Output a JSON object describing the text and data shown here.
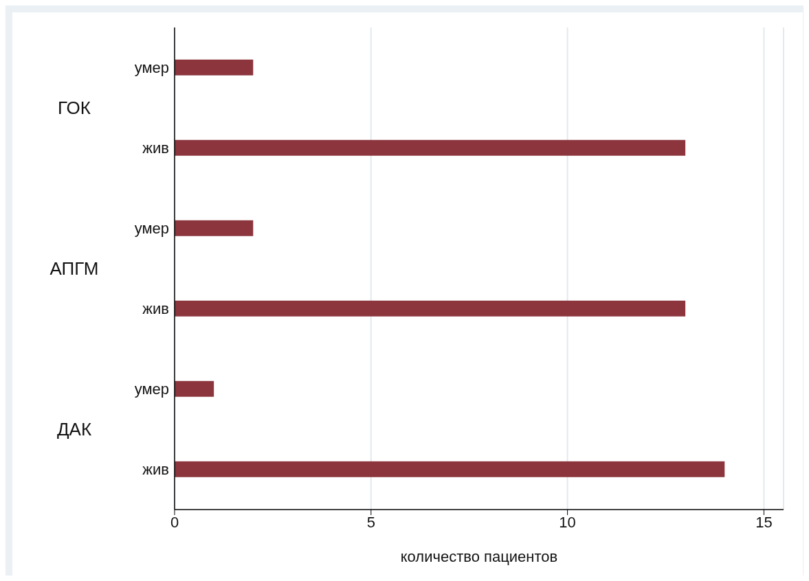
{
  "chart_data": {
    "type": "bar",
    "orientation": "horizontal",
    "xlabel": "количество пациентов",
    "categories": [
      "умер",
      "жив",
      "умер",
      "жив",
      "умер",
      "жив"
    ],
    "values": [
      2,
      13,
      2,
      13,
      1,
      14
    ],
    "color": "#8c353d",
    "annotations": [
      "ГОК",
      "АПГМ",
      "ДАК"
    ],
    "xlim": [
      0,
      15.5
    ],
    "xticks": [
      0,
      5,
      10,
      15
    ],
    "grid": "x"
  }
}
